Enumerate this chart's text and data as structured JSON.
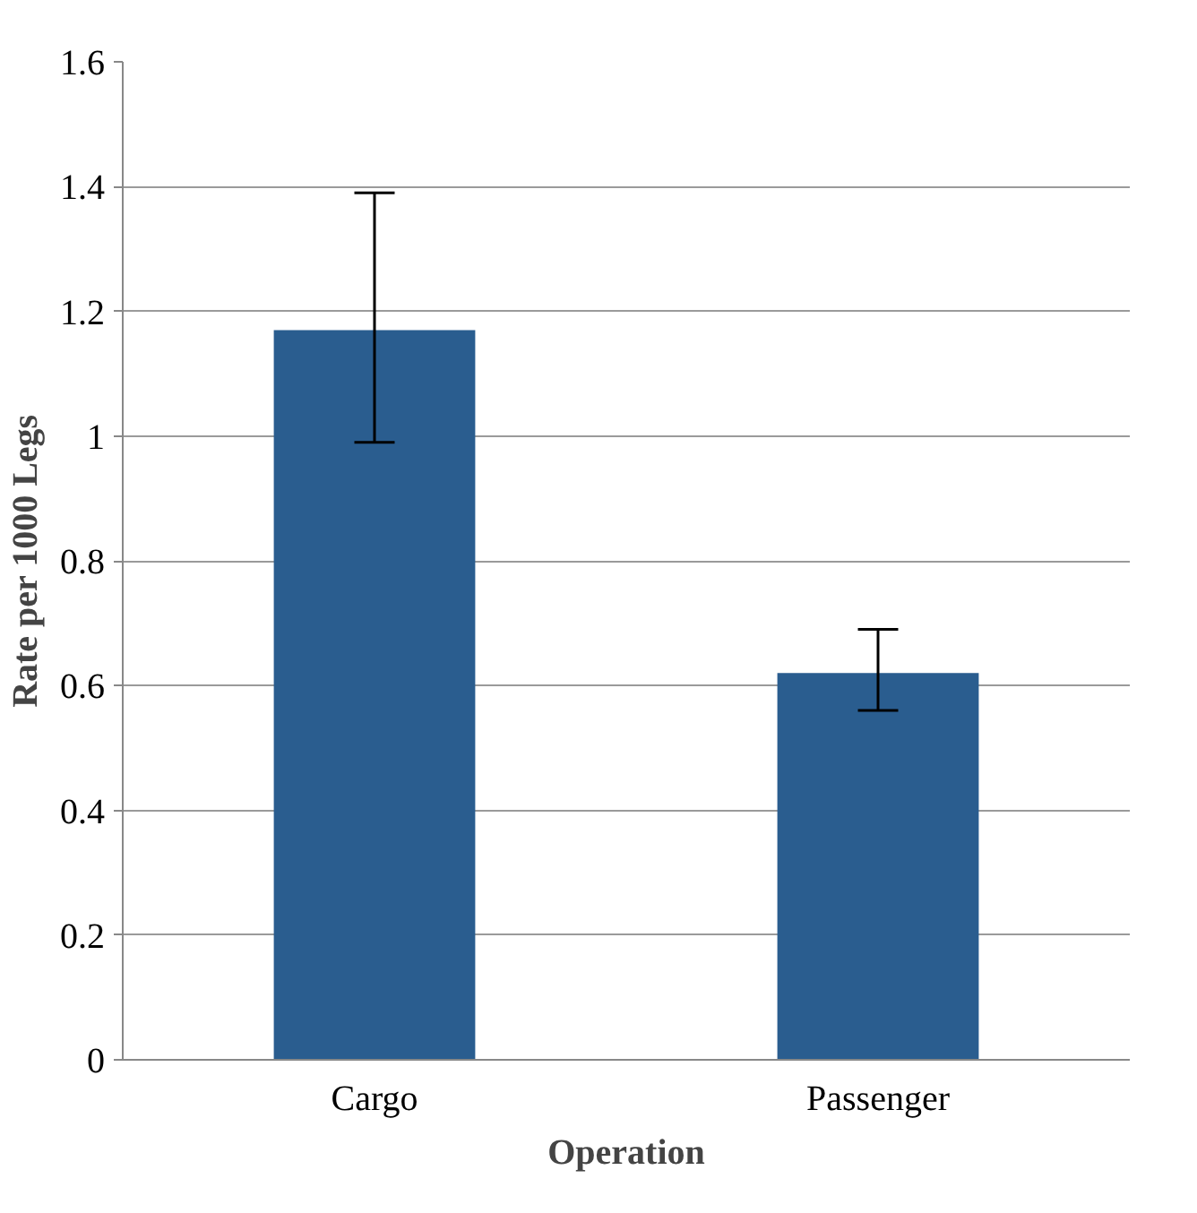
{
  "chart_data": {
    "type": "bar",
    "xlabel": "Operation",
    "ylabel": "Rate per 1000 Legs",
    "categories": [
      "Cargo",
      "Passenger"
    ],
    "values": [
      1.17,
      0.62
    ],
    "errors": [
      [
        0.99,
        1.39
      ],
      [
        0.56,
        0.69
      ]
    ],
    "color": "#2a5d8f",
    "ylim": [
      0,
      1.6
    ],
    "yticks": [
      0,
      0.2,
      0.4,
      0.6,
      0.8,
      1,
      1.2,
      1.4,
      1.6
    ],
    "grid": "y"
  }
}
